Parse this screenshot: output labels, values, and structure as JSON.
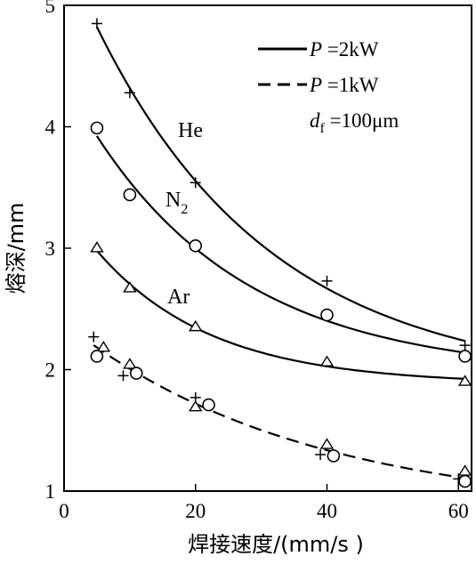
{
  "chart_data": {
    "type": "line",
    "xlabel": "焊接速度/(mm/s )",
    "ylabel": "熔深/mm",
    "xlim": [
      0,
      62
    ],
    "ylim": [
      1,
      5
    ],
    "xticks": [
      "0",
      "20",
      "40",
      "60"
    ],
    "yticks": [
      "1",
      "2",
      "3",
      "4",
      "5"
    ],
    "grid": false,
    "legend": {
      "placement": "top-right",
      "entries": [
        {
          "var": "P",
          "text": " =2kW",
          "style": "solid"
        },
        {
          "var": "P",
          "text": " =1kW",
          "style": "dashed"
        }
      ],
      "note": {
        "var": "d",
        "sub": "f",
        "text": " =100μm"
      }
    },
    "series": [
      {
        "name": "He",
        "power": "2kW",
        "marker": "plus",
        "style": "solid",
        "x": [
          5,
          10,
          20,
          40,
          61
        ],
        "y": [
          4.85,
          4.28,
          3.54,
          2.73,
          2.2
        ]
      },
      {
        "name": "N",
        "name_sub": "2",
        "power": "2kW",
        "marker": "circle",
        "style": "solid",
        "x": [
          5,
          10,
          20,
          40,
          61
        ],
        "y": [
          3.99,
          3.44,
          3.02,
          2.45,
          2.11
        ]
      },
      {
        "name": "Ar",
        "power": "2kW",
        "marker": "triangle",
        "style": "solid",
        "x": [
          5,
          10,
          20,
          40,
          61
        ],
        "y": [
          3.0,
          2.67,
          2.35,
          2.06,
          1.9
        ]
      },
      {
        "power": "1kW",
        "marker": "plus",
        "style": "dashed",
        "x": [
          4.5,
          9,
          20,
          39,
          60
        ],
        "y": [
          2.27,
          1.95,
          1.77,
          1.3,
          1.1
        ]
      },
      {
        "power": "1kW",
        "marker": "triangle",
        "style": "dashed",
        "x": [
          6,
          10,
          20,
          40,
          61
        ],
        "y": [
          2.18,
          2.04,
          1.69,
          1.38,
          1.16
        ]
      },
      {
        "power": "1kW",
        "marker": "circle",
        "style": "dashed",
        "x": [
          5,
          11,
          22,
          41,
          61
        ],
        "y": [
          2.11,
          1.97,
          1.71,
          1.29,
          1.08
        ]
      }
    ]
  }
}
